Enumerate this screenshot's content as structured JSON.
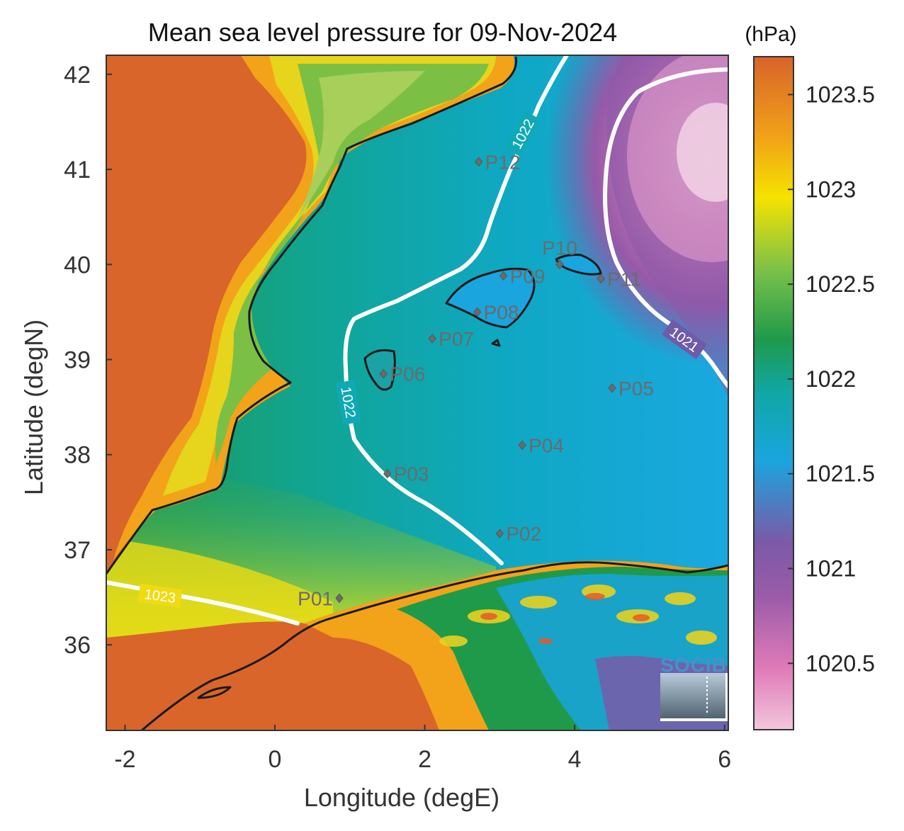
{
  "title": "Mean sea level pressure for 09-Nov-2024",
  "xlabel": "Longitude (degE)",
  "ylabel": "Latitude (degN)",
  "colorbar": {
    "unit": "(hPa)",
    "ticks": [
      "1023.5",
      "1023",
      "1022.5",
      "1022",
      "1021.5",
      "1021",
      "1020.5"
    ],
    "tick_values": [
      1023.5,
      1023,
      1022.5,
      1022,
      1021.5,
      1021,
      1020.5
    ],
    "range": [
      1020.15,
      1023.7
    ],
    "colors": [
      "#f2c6dc",
      "#d36aa6",
      "#7f57a4",
      "#1aa5de",
      "#0fa79a",
      "#1f9a4a",
      "#8cc840",
      "#f5e300",
      "#f09318",
      "#d8632a"
    ]
  },
  "map": {
    "xlim": [
      -2.25,
      6.05
    ],
    "ylim": [
      35.1,
      42.2
    ],
    "xticks": [
      "-2",
      "0",
      "2",
      "4",
      "6"
    ],
    "xtick_values": [
      -2,
      0,
      2,
      4,
      6
    ],
    "yticks": [
      "42",
      "41",
      "40",
      "39",
      "38",
      "37",
      "36"
    ],
    "ytick_values": [
      42,
      41,
      40,
      39,
      38,
      37,
      36
    ]
  },
  "stations": [
    {
      "name": "P01",
      "lon": 0.86,
      "lat": 36.49,
      "label_side": "left"
    },
    {
      "name": "P02",
      "lon": 3.0,
      "lat": 37.17,
      "label_side": "right"
    },
    {
      "name": "P03",
      "lon": 1.5,
      "lat": 37.8,
      "label_side": "right"
    },
    {
      "name": "P04",
      "lon": 3.3,
      "lat": 38.1,
      "label_side": "right"
    },
    {
      "name": "P05",
      "lon": 4.5,
      "lat": 38.7,
      "label_side": "right"
    },
    {
      "name": "P06",
      "lon": 1.45,
      "lat": 38.85,
      "label_side": "right"
    },
    {
      "name": "P07",
      "lon": 2.1,
      "lat": 39.22,
      "label_side": "right"
    },
    {
      "name": "P08",
      "lon": 2.7,
      "lat": 39.5,
      "label_side": "right"
    },
    {
      "name": "P09",
      "lon": 3.05,
      "lat": 39.88,
      "label_side": "right"
    },
    {
      "name": "P10",
      "lon": 3.8,
      "lat": 40.0,
      "label_side": "above"
    },
    {
      "name": "P11",
      "lon": 4.35,
      "lat": 39.85,
      "label_side": "right"
    },
    {
      "name": "P12",
      "lon": 2.72,
      "lat": 41.08,
      "label_side": "right"
    }
  ],
  "contours": [
    {
      "value": "1022",
      "label": "1022"
    },
    {
      "value": "1021",
      "label": "1021"
    },
    {
      "value": "1023",
      "label": "1023"
    }
  ],
  "logo": {
    "text": "SOCIB"
  }
}
